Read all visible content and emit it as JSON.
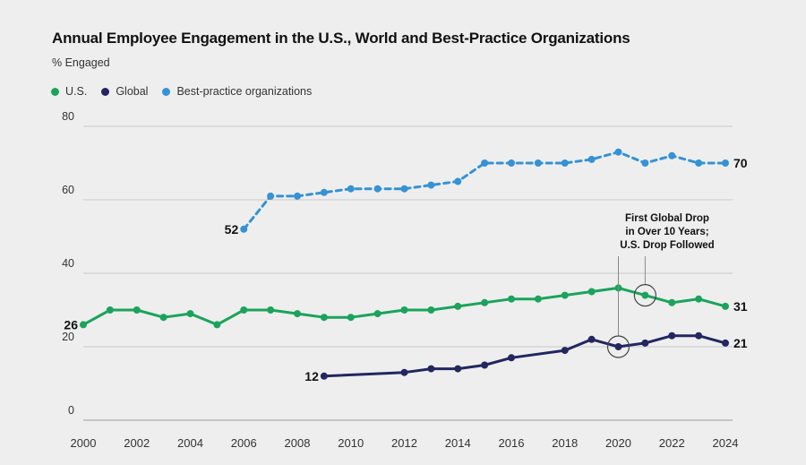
{
  "chart_data": {
    "type": "line",
    "title": "Annual Employee Engagement in the U.S., World and Best-Practice Organizations",
    "ylabel": "% Engaged",
    "xlabel": "",
    "ylim": [
      0,
      80
    ],
    "xlim": [
      2000,
      2024
    ],
    "yticks": [
      "0",
      "20",
      "40",
      "60",
      "80"
    ],
    "xticks": [
      "2000",
      "2002",
      "2004",
      "2006",
      "2008",
      "2010",
      "2012",
      "2014",
      "2016",
      "2018",
      "2020",
      "2022",
      "2024"
    ],
    "grid": true,
    "legend_position": "top-left",
    "series": [
      {
        "name": "U.S.",
        "color": "#1ba35c",
        "style": "solid",
        "x": [
          2000,
          2001,
          2002,
          2003,
          2004,
          2005,
          2006,
          2007,
          2008,
          2009,
          2010,
          2011,
          2012,
          2013,
          2014,
          2015,
          2016,
          2017,
          2018,
          2019,
          2020,
          2021,
          2022,
          2023,
          2024
        ],
        "y": [
          26,
          30,
          30,
          28,
          29,
          26,
          30,
          30,
          29,
          28,
          28,
          29,
          30,
          30,
          31,
          32,
          33,
          33,
          34,
          35,
          36,
          34,
          32,
          33,
          31
        ],
        "start_label": "26",
        "end_label": "31"
      },
      {
        "name": "Global",
        "color": "#23265f",
        "style": "solid",
        "x": [
          2009,
          2012,
          2013,
          2014,
          2015,
          2016,
          2018,
          2019,
          2020,
          2021,
          2022,
          2023,
          2024
        ],
        "y": [
          12,
          13,
          14,
          14,
          15,
          17,
          19,
          22,
          20,
          21,
          23,
          23,
          21
        ],
        "start_label": "12",
        "end_label": "21"
      },
      {
        "name": "Best-practice organizations",
        "color": "#3592d3",
        "style": "dashed",
        "x": [
          2006,
          2007,
          2008,
          2009,
          2010,
          2011,
          2012,
          2013,
          2014,
          2015,
          2016,
          2017,
          2018,
          2019,
          2020,
          2021,
          2022,
          2023,
          2024
        ],
        "y": [
          52,
          61,
          61,
          62,
          63,
          63,
          63,
          64,
          65,
          70,
          70,
          70,
          70,
          71,
          73,
          70,
          72,
          70,
          70
        ],
        "start_label": "52",
        "end_label": "70"
      }
    ],
    "annotation": {
      "lines": [
        "First Global Drop",
        "in Over 10 Years;",
        "U.S. Drop Followed"
      ],
      "targets": [
        {
          "series": "Global",
          "x": 2020,
          "y": 20
        },
        {
          "series": "U.S.",
          "x": 2021,
          "y": 34
        }
      ]
    }
  }
}
